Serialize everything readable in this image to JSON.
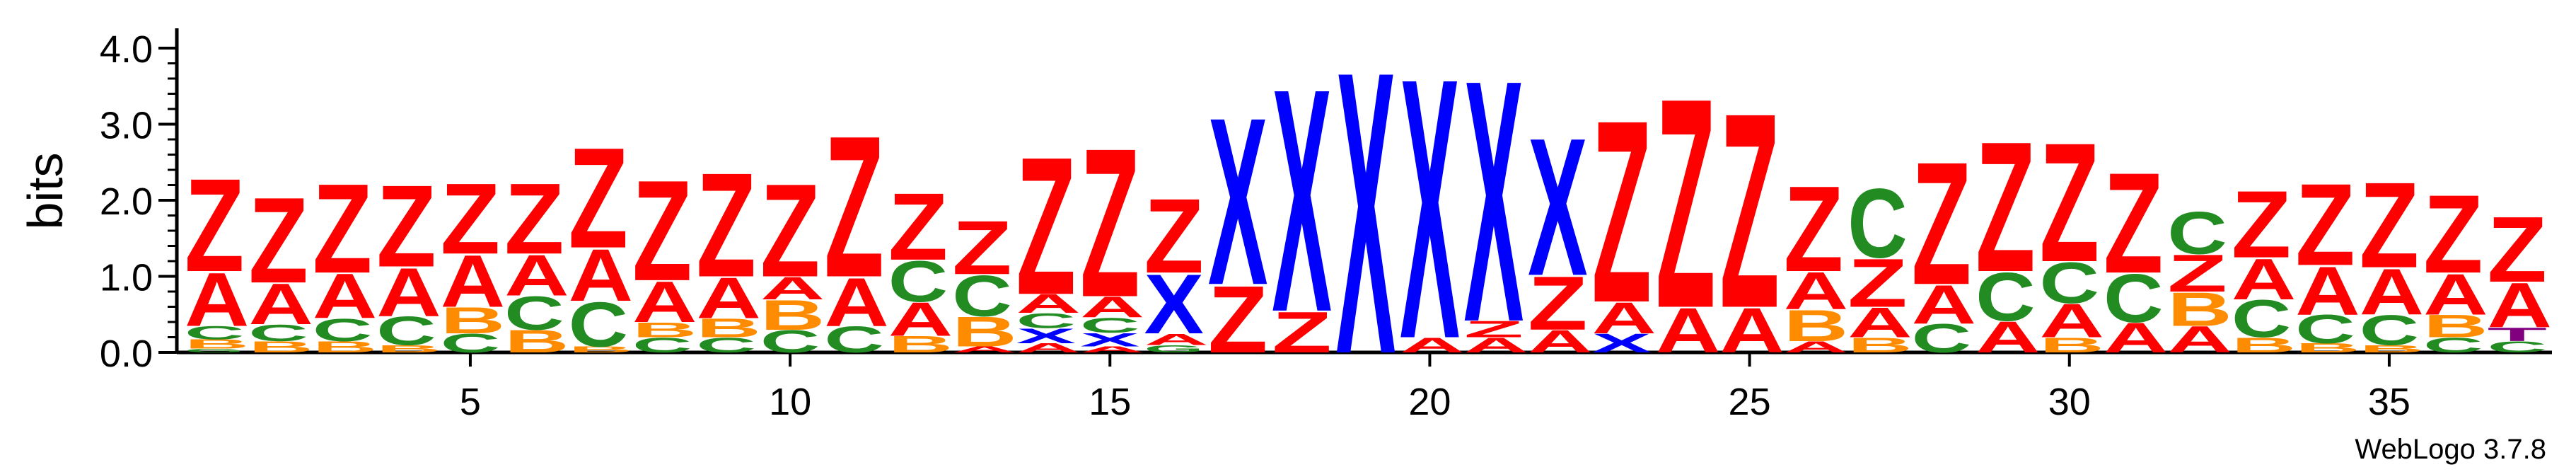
{
  "chart_data": {
    "type": "sequence-logo",
    "title": "",
    "ylabel": "bits",
    "xlabel": "",
    "ylim": [
      0,
      4.0
    ],
    "yticks": [
      "0.0",
      "1.0",
      "2.0",
      "3.0",
      "4.0"
    ],
    "xticks": [
      5,
      10,
      15,
      20,
      25,
      30,
      35
    ],
    "credit": "WebLogo 3.7.8",
    "colors": {
      "Z": "#ff0000",
      "A": "#ff0000",
      "C": "#228b22",
      "B": "#ff8c00",
      "X": "#0000ff",
      "T": "#800080"
    },
    "positions": [
      {
        "pos": 1,
        "stack": [
          [
            "G",
            0.05
          ],
          [
            "B",
            0.12
          ],
          [
            "C",
            0.18
          ],
          [
            "A",
            0.72
          ],
          [
            "Z",
            1.25
          ]
        ]
      },
      {
        "pos": 2,
        "stack": [
          [
            "B",
            0.15
          ],
          [
            "C",
            0.22
          ],
          [
            "A",
            0.55
          ],
          [
            "Z",
            1.15
          ]
        ]
      },
      {
        "pos": 3,
        "stack": [
          [
            "B",
            0.15
          ],
          [
            "C",
            0.3
          ],
          [
            "A",
            0.6
          ],
          [
            "Z",
            1.2
          ]
        ]
      },
      {
        "pos": 4,
        "stack": [
          [
            "B",
            0.1
          ],
          [
            "C",
            0.38
          ],
          [
            "A",
            0.65
          ],
          [
            "Z",
            1.1
          ]
        ]
      },
      {
        "pos": 5,
        "stack": [
          [
            "C",
            0.25
          ],
          [
            "B",
            0.35
          ],
          [
            "A",
            0.7
          ],
          [
            "Z",
            0.95
          ]
        ]
      },
      {
        "pos": 6,
        "stack": [
          [
            "B",
            0.3
          ],
          [
            "C",
            0.45
          ],
          [
            "A",
            0.55
          ],
          [
            "Z",
            0.95
          ]
        ]
      },
      {
        "pos": 7,
        "stack": [
          [
            "B",
            0.08
          ],
          [
            "C",
            0.6
          ],
          [
            "A",
            0.7
          ],
          [
            "Z",
            1.35
          ]
        ]
      },
      {
        "pos": 8,
        "stack": [
          [
            "C",
            0.2
          ],
          [
            "B",
            0.2
          ],
          [
            "A",
            0.55
          ],
          [
            "Z",
            1.35
          ]
        ]
      },
      {
        "pos": 9,
        "stack": [
          [
            "C",
            0.2
          ],
          [
            "B",
            0.25
          ],
          [
            "A",
            0.55
          ],
          [
            "Z",
            1.4
          ]
        ]
      },
      {
        "pos": 10,
        "stack": [
          [
            "C",
            0.3
          ],
          [
            "B",
            0.4
          ],
          [
            "A",
            0.3
          ],
          [
            "Z",
            1.25
          ]
        ]
      },
      {
        "pos": 11,
        "stack": [
          [
            "C",
            0.35
          ],
          [
            "A",
            0.65
          ],
          [
            "Z",
            1.9
          ]
        ]
      },
      {
        "pos": 12,
        "stack": [
          [
            "B",
            0.22
          ],
          [
            "A",
            0.45
          ],
          [
            "C",
            0.55
          ],
          [
            "Z",
            0.9
          ]
        ]
      },
      {
        "pos": 13,
        "stack": [
          [
            "A",
            0.08
          ],
          [
            "B",
            0.4
          ],
          [
            "C",
            0.55
          ],
          [
            "Z",
            0.72
          ]
        ]
      },
      {
        "pos": 14,
        "stack": [
          [
            "A",
            0.12
          ],
          [
            "X",
            0.2
          ],
          [
            "C",
            0.2
          ],
          [
            "A",
            0.25
          ],
          [
            "Z",
            1.85
          ]
        ]
      },
      {
        "pos": 15,
        "stack": [
          [
            "A",
            0.08
          ],
          [
            "X",
            0.18
          ],
          [
            "C",
            0.2
          ],
          [
            "A",
            0.28
          ],
          [
            "Z",
            2.0
          ]
        ]
      },
      {
        "pos": 16,
        "stack": [
          [
            "G",
            0.1
          ],
          [
            "A",
            0.15
          ],
          [
            "X",
            0.8
          ],
          [
            "Z",
            1.0
          ]
        ]
      },
      {
        "pos": 17,
        "stack": [
          [
            "Z",
            0.9
          ],
          [
            "X",
            2.25
          ]
        ]
      },
      {
        "pos": 18,
        "stack": [
          [
            "Z",
            0.55
          ],
          [
            "X",
            3.0
          ]
        ]
      },
      {
        "pos": 19,
        "stack": [
          [
            "X",
            3.8
          ]
        ]
      },
      {
        "pos": 20,
        "stack": [
          [
            "A",
            0.2
          ],
          [
            "X",
            3.5
          ]
        ]
      },
      {
        "pos": 21,
        "stack": [
          [
            "A",
            0.2
          ],
          [
            "Z",
            0.22
          ],
          [
            "X",
            3.25
          ]
        ]
      },
      {
        "pos": 22,
        "stack": [
          [
            "A",
            0.3
          ],
          [
            "Z",
            0.72
          ],
          [
            "X",
            1.85
          ]
        ]
      },
      {
        "pos": 23,
        "stack": [
          [
            "X",
            0.25
          ],
          [
            "A",
            0.42
          ],
          [
            "Z",
            2.45
          ]
        ]
      },
      {
        "pos": 24,
        "stack": [
          [
            "A",
            0.6
          ],
          [
            "Z",
            2.82
          ]
        ]
      },
      {
        "pos": 25,
        "stack": [
          [
            "A",
            0.6
          ],
          [
            "Z",
            2.62
          ]
        ]
      },
      {
        "pos": 26,
        "stack": [
          [
            "A",
            0.15
          ],
          [
            "B",
            0.42
          ],
          [
            "A",
            0.5
          ],
          [
            "Z",
            1.15
          ]
        ]
      },
      {
        "pos": 27,
        "stack": [
          [
            "B",
            0.2
          ],
          [
            "A",
            0.4
          ],
          [
            "Z",
            0.65
          ],
          [
            "C",
            0.93
          ]
        ]
      },
      {
        "pos": 28,
        "stack": [
          [
            "C",
            0.38
          ],
          [
            "A",
            0.52
          ],
          [
            "Z",
            1.65
          ]
        ]
      },
      {
        "pos": 29,
        "stack": [
          [
            "A",
            0.42
          ],
          [
            "C",
            0.65
          ],
          [
            "Z",
            1.75
          ]
        ]
      },
      {
        "pos": 30,
        "stack": [
          [
            "B",
            0.2
          ],
          [
            "A",
            0.45
          ],
          [
            "C",
            0.55
          ],
          [
            "Z",
            1.6
          ]
        ]
      },
      {
        "pos": 31,
        "stack": [
          [
            "A",
            0.4
          ],
          [
            "C",
            0.65
          ],
          [
            "Z",
            1.35
          ]
        ]
      },
      {
        "pos": 32,
        "stack": [
          [
            "A",
            0.35
          ],
          [
            "B",
            0.45
          ],
          [
            "Z",
            0.5
          ],
          [
            "C",
            0.57
          ]
        ]
      },
      {
        "pos": 33,
        "stack": [
          [
            "B",
            0.2
          ],
          [
            "C",
            0.5
          ],
          [
            "A",
            0.55
          ],
          [
            "Z",
            0.9
          ]
        ]
      },
      {
        "pos": 34,
        "stack": [
          [
            "B",
            0.12
          ],
          [
            "C",
            0.38
          ],
          [
            "A",
            0.65
          ],
          [
            "Z",
            1.1
          ]
        ]
      },
      {
        "pos": 35,
        "stack": [
          [
            "B",
            0.1
          ],
          [
            "C",
            0.4
          ],
          [
            "A",
            0.62
          ],
          [
            "Z",
            1.15
          ]
        ]
      },
      {
        "pos": 36,
        "stack": [
          [
            "C",
            0.2
          ],
          [
            "B",
            0.3
          ],
          [
            "A",
            0.55
          ],
          [
            "Z",
            1.05
          ]
        ]
      },
      {
        "pos": 37,
        "stack": [
          [
            "C",
            0.15
          ],
          [
            "T",
            0.18
          ],
          [
            "A",
            0.6
          ],
          [
            "Z",
            0.88
          ]
        ]
      }
    ]
  }
}
